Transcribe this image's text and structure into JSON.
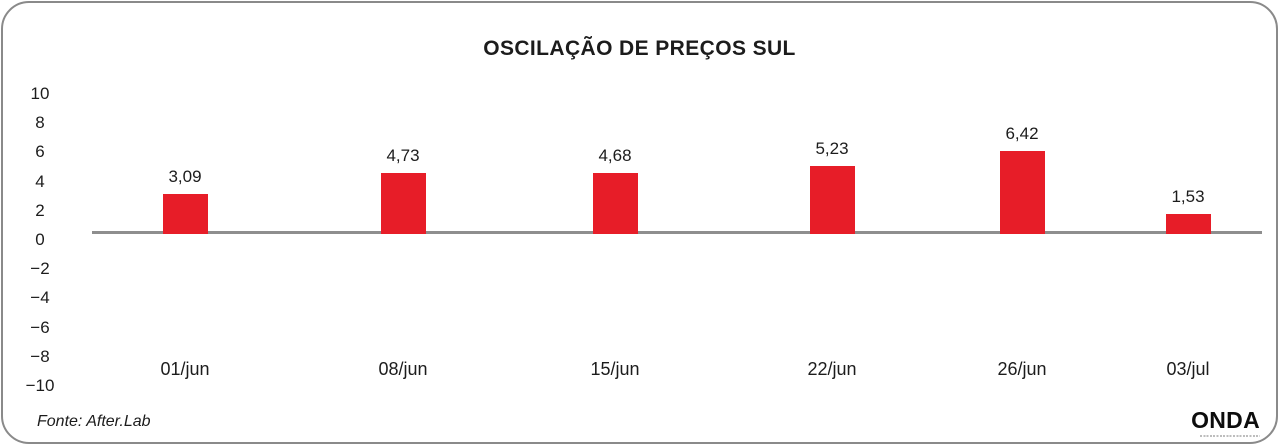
{
  "title": "OSCILAÇÃO DE PREÇOS SUL",
  "footer": {
    "source": "Fonte: After.Lab",
    "brand": "ONDA"
  },
  "colors": {
    "bar": "#e71d28",
    "axis_line": "#8e8e8e",
    "card_border": "#8a8a8a",
    "text": "#1c1c1c"
  },
  "chart_data": {
    "type": "bar",
    "title": "OSCILAÇÃO DE PREÇOS SUL",
    "categories": [
      "01/jun",
      "08/jun",
      "15/jun",
      "22/jun",
      "26/jun",
      "03/jul"
    ],
    "values": [
      3.09,
      4.73,
      4.68,
      5.23,
      6.42,
      1.53
    ],
    "value_labels": [
      "3,09",
      "4,73",
      "4,68",
      "5,23",
      "6,42",
      "1,53"
    ],
    "bar_color": "#e71d28",
    "xlabel": "",
    "ylabel": "",
    "ylim": [
      -10,
      10
    ],
    "y_ticks": [
      10,
      8,
      6,
      4,
      2,
      0,
      -2,
      -4,
      -6,
      -8,
      -10
    ],
    "grid": false,
    "legend": "none"
  }
}
